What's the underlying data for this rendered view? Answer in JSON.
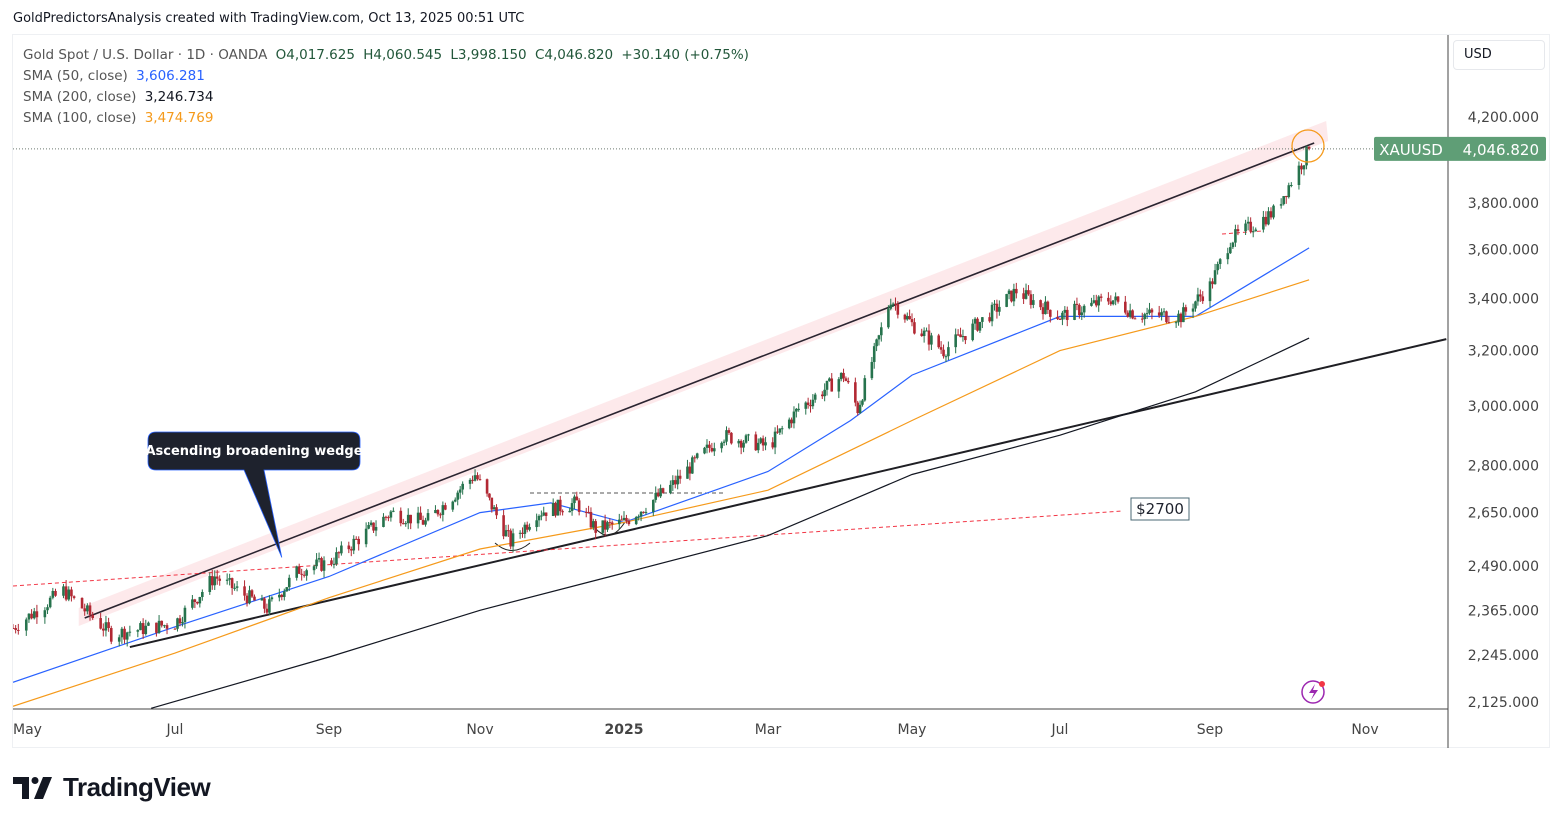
{
  "credit": "GoldPredictorsAnalysis created with TradingView.com, Oct 13, 2025 00:51 UTC",
  "legend": {
    "symbol": "Gold Spot / U.S. Dollar · 1D · OANDA",
    "open": "O4,017.625",
    "high": "H4,060.545",
    "low": "L3,998.150",
    "close": "C4,046.820",
    "change": "+30.140 (+0.75%)",
    "sma50_label": "SMA (50, close)",
    "sma50_value": "3,606.281",
    "sma200_label": "SMA (200, close)",
    "sma200_value": "3,246.734",
    "sma100_label": "SMA (100, close)",
    "sma100_value": "3,474.769"
  },
  "currency_button": "USD",
  "logo_text": "TradingView",
  "colors": {
    "up": "#26734d",
    "down": "#b22833",
    "sma50": "#2962ff",
    "sma100": "#f59a1b",
    "sma200": "#131722",
    "channel": "#fde5e8",
    "support_dashed": "#f23645",
    "price_label_bg": "#5f9e76"
  },
  "chart_data": {
    "type": "candlestick",
    "symbol": "XAUUSD",
    "interval": "1D",
    "y_scale": "log",
    "ylim": [
      2100,
      4300
    ],
    "xlim": [
      "2024-05-01",
      "2025-12-05"
    ],
    "y_ticks": [
      "4,200.000",
      "3,800.000",
      "3,600.000",
      "3,400.000",
      "3,200.000",
      "3,000.000",
      "2,800.000",
      "2,650.000",
      "2,490.000",
      "2,365.000",
      "2,245.000",
      "2,125.000"
    ],
    "y_tick_values": [
      4200,
      3800,
      3600,
      3400,
      3200,
      3000,
      2800,
      2650,
      2490,
      2365,
      2245,
      2125
    ],
    "x_ticks": [
      {
        "label": "May",
        "date": "2024-05-01",
        "bold": false
      },
      {
        "label": "Jul",
        "date": "2024-07-01",
        "bold": false
      },
      {
        "label": "Sep",
        "date": "2024-09-01",
        "bold": false
      },
      {
        "label": "Nov",
        "date": "2024-11-01",
        "bold": false
      },
      {
        "label": "2025",
        "date": "2025-01-01",
        "bold": true
      },
      {
        "label": "Mar",
        "date": "2025-03-01",
        "bold": false
      },
      {
        "label": "May",
        "date": "2025-05-01",
        "bold": false
      },
      {
        "label": "Jul",
        "date": "2025-07-01",
        "bold": false
      },
      {
        "label": "Sep",
        "date": "2025-09-01",
        "bold": false
      },
      {
        "label": "Nov",
        "date": "2025-11-01",
        "bold": false
      }
    ],
    "last_price": {
      "label": "XAUUSD",
      "value": "4,046.820",
      "price": 4046.82
    },
    "close_path": [
      [
        "2024-05-01",
        2317
      ],
      [
        "2024-05-20",
        2420
      ],
      [
        "2024-06-07",
        2300
      ],
      [
        "2024-07-01",
        2330
      ],
      [
        "2024-07-17",
        2460
      ],
      [
        "2024-08-07",
        2370
      ],
      [
        "2024-08-20",
        2480
      ],
      [
        "2024-09-01",
        2500
      ],
      [
        "2024-09-26",
        2650
      ],
      [
        "2024-10-10",
        2620
      ],
      [
        "2024-10-30",
        2770
      ],
      [
        "2024-11-14",
        2560
      ],
      [
        "2024-11-25",
        2650
      ],
      [
        "2024-12-12",
        2680
      ],
      [
        "2024-12-20",
        2600
      ],
      [
        "2025-01-01",
        2620
      ],
      [
        "2025-01-20",
        2730
      ],
      [
        "2025-02-10",
        2900
      ],
      [
        "2025-02-25",
        2870
      ],
      [
        "2025-03-01",
        2860
      ],
      [
        "2025-03-14",
        2990
      ],
      [
        "2025-04-02",
        3110
      ],
      [
        "2025-04-08",
        2990
      ],
      [
        "2025-04-22",
        3400
      ],
      [
        "2025-05-01",
        3300
      ],
      [
        "2025-05-14",
        3200
      ],
      [
        "2025-06-01",
        3330
      ],
      [
        "2025-06-13",
        3430
      ],
      [
        "2025-07-01",
        3330
      ],
      [
        "2025-07-22",
        3400
      ],
      [
        "2025-08-01",
        3340
      ],
      [
        "2025-08-20",
        3330
      ],
      [
        "2025-09-01",
        3450
      ],
      [
        "2025-09-09",
        3640
      ],
      [
        "2025-09-26",
        3760
      ],
      [
        "2025-10-08",
        4000
      ],
      [
        "2025-10-10",
        4046.82
      ]
    ],
    "series": [
      {
        "name": "SMA (50, close)",
        "color": "#2962ff",
        "points": [
          [
            "2024-05-01",
            2175
          ],
          [
            "2024-07-01",
            2320
          ],
          [
            "2024-09-01",
            2460
          ],
          [
            "2024-11-01",
            2650
          ],
          [
            "2024-12-01",
            2680
          ],
          [
            "2025-01-01",
            2620
          ],
          [
            "2025-03-01",
            2780
          ],
          [
            "2025-04-05",
            2950
          ],
          [
            "2025-05-01",
            3110
          ],
          [
            "2025-07-01",
            3330
          ],
          [
            "2025-08-26",
            3330
          ],
          [
            "2025-10-10",
            3606.281
          ]
        ]
      },
      {
        "name": "SMA (100, close)",
        "color": "#f59a1b",
        "points": [
          [
            "2024-05-01",
            2115
          ],
          [
            "2024-07-01",
            2250
          ],
          [
            "2024-09-01",
            2400
          ],
          [
            "2024-11-01",
            2540
          ],
          [
            "2025-01-01",
            2620
          ],
          [
            "2025-03-01",
            2720
          ],
          [
            "2025-05-01",
            2950
          ],
          [
            "2025-07-01",
            3200
          ],
          [
            "2025-08-26",
            3330
          ],
          [
            "2025-10-10",
            3474.769
          ]
        ]
      },
      {
        "name": "SMA (200, close)",
        "color": "#131722",
        "points": [
          [
            "2024-06-22",
            2110
          ],
          [
            "2024-09-01",
            2240
          ],
          [
            "2024-11-01",
            2365
          ],
          [
            "2025-01-01",
            2470
          ],
          [
            "2025-03-01",
            2580
          ],
          [
            "2025-05-01",
            2770
          ],
          [
            "2025-07-01",
            2900
          ],
          [
            "2025-08-26",
            3050
          ],
          [
            "2025-10-10",
            3246.734
          ]
        ]
      }
    ],
    "drawings": {
      "upper_trendline": [
        [
          "2024-05-28",
          2344
        ],
        [
          "2025-10-12",
          4075
        ]
      ],
      "lower_trendline": [
        [
          "2024-06-14",
          2266
        ],
        [
          "2025-12-03",
          3243
        ]
      ],
      "support_dashed": [
        [
          "2024-05-01",
          2433
        ],
        [
          "2025-07-27",
          2655
        ]
      ],
      "range_dashed": [
        [
          "2024-11-28",
          2720
        ],
        [
          "2025-01-40",
          2720
        ]
      ],
      "support_label": "$2700",
      "callout": {
        "text": "Ascending broadening wedge",
        "points_to": [
          "2024-08-13",
          2515
        ]
      }
    }
  }
}
